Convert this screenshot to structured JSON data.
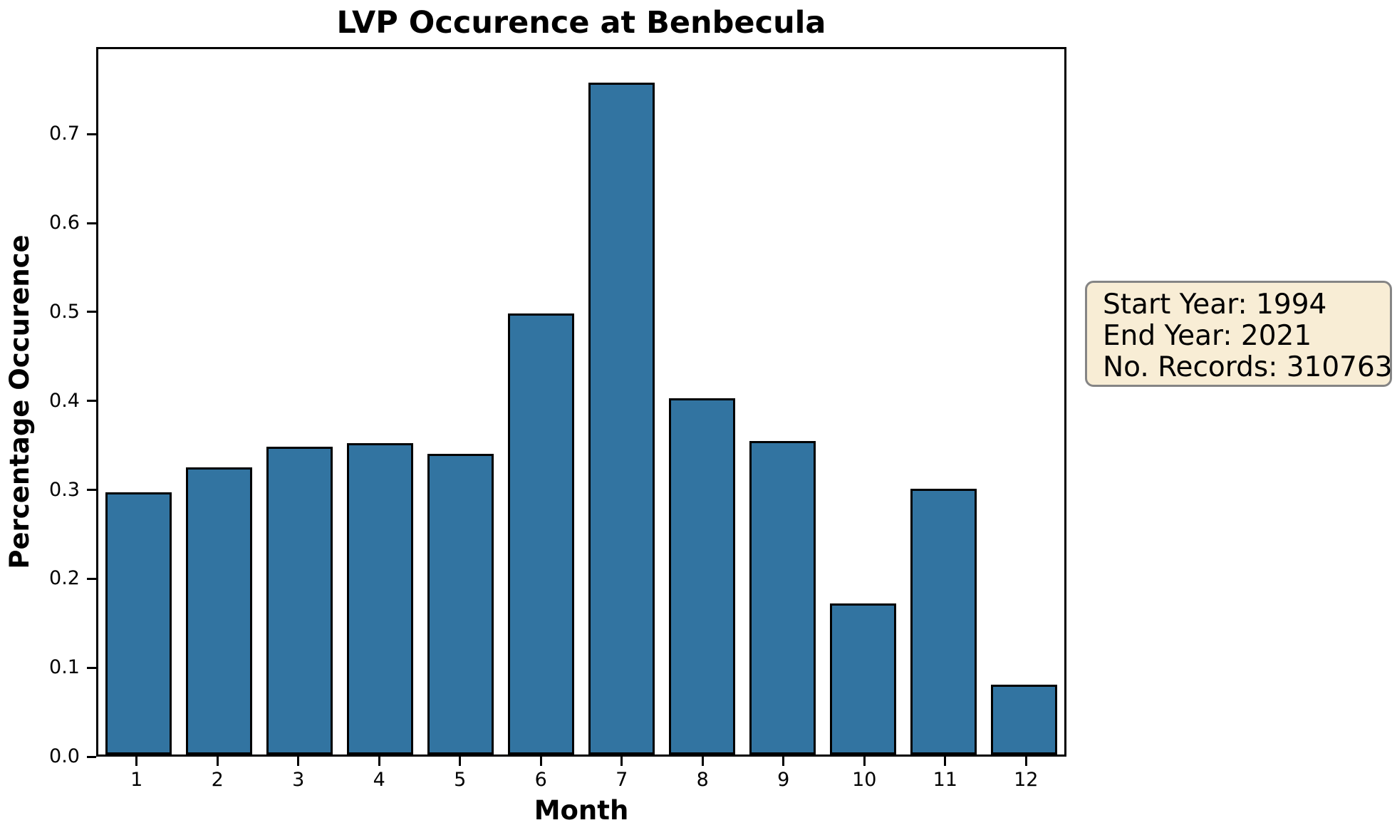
{
  "chart_data": {
    "type": "bar",
    "title": "LVP Occurence at Benbecula",
    "xlabel": "Month",
    "ylabel": "Percentage Occurence",
    "categories": [
      "1",
      "2",
      "3",
      "4",
      "5",
      "6",
      "7",
      "8",
      "9",
      "10",
      "11",
      "12"
    ],
    "values": [
      0.297,
      0.325,
      0.348,
      0.352,
      0.34,
      0.499,
      0.76,
      0.403,
      0.355,
      0.171,
      0.301,
      0.079
    ],
    "ylim": [
      0,
      0.798
    ],
    "yticks": [
      0.0,
      0.1,
      0.2,
      0.3,
      0.4,
      0.5,
      0.6,
      0.7
    ],
    "ytick_labels": [
      "0.0",
      "0.1",
      "0.2",
      "0.3",
      "0.4",
      "0.5",
      "0.6",
      "0.7"
    ],
    "grid": false,
    "legend": "none",
    "bar_color": "#3274a1",
    "bar_edge_color": "#000000"
  },
  "annotation": {
    "lines": [
      "Start Year: 1994",
      "End Year: 2021",
      "No. Records: 310763"
    ],
    "background_color": "#f8edd5",
    "border_color": "#858585"
  }
}
